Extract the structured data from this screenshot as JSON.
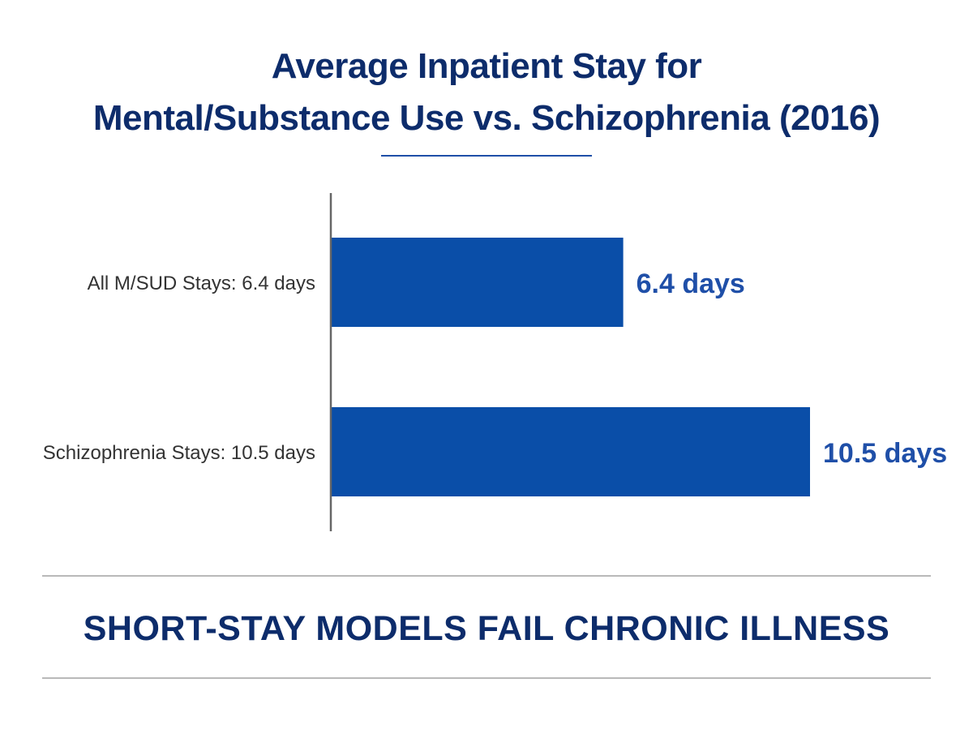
{
  "title_line1": "Average Inpatient Stay for",
  "title_line2": "Mental/Substance Use vs. Schizophrenia (2016)",
  "tagline": "SHORT-STAY MODELS FAIL CHRONIC ILLNESS",
  "colors": {
    "title": "#0d2c6b",
    "bar": "#0a4ea8",
    "value_label": "#1f4fa8",
    "category_label": "#333333",
    "axis": "#666666",
    "rule": "#b9b9b9"
  },
  "chart_data": {
    "type": "bar",
    "orientation": "horizontal",
    "categories": [
      "All M/SUD Stays: 6.4 days",
      "Schizophrenia Stays: 10.5 days"
    ],
    "values": [
      6.4,
      10.5
    ],
    "data_labels": [
      "6.4 days",
      "10.5 days"
    ],
    "title": "Average Inpatient Stay for Mental/Substance Use vs. Schizophrenia (2016)",
    "xlabel": "",
    "ylabel": "",
    "xlim": [
      0,
      10.5
    ],
    "grid": false,
    "legend": "none"
  }
}
